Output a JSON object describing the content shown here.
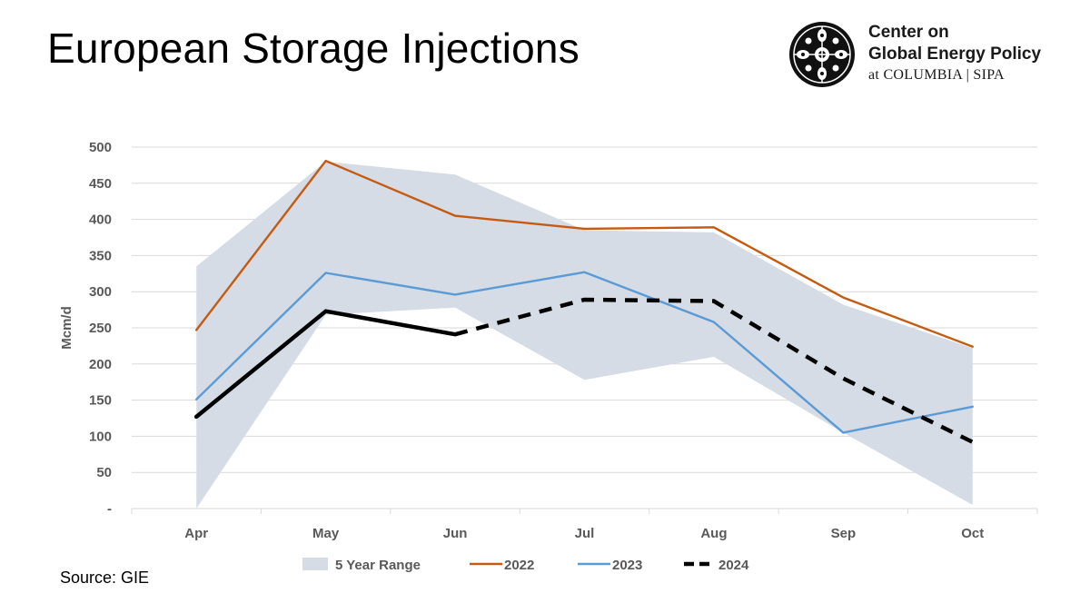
{
  "slide": {
    "title": "European Storage Injections",
    "source": "Source: GIE"
  },
  "logo": {
    "line1": "Center on",
    "line2": "Global Energy Policy",
    "line3": "at COLUMBIA | SIPA",
    "icon": "columbia-crown-seal-icon"
  },
  "chart_data": {
    "type": "line",
    "title": "",
    "xlabel": "",
    "ylabel": "Mcm/d",
    "categories": [
      "Apr",
      "May",
      "Jun",
      "Jul",
      "Aug",
      "Sep",
      "Oct"
    ],
    "ylim": [
      0,
      500
    ],
    "yticks": [
      0,
      50,
      100,
      150,
      200,
      250,
      300,
      350,
      400,
      450,
      500
    ],
    "ytick_labels": [
      "-",
      "50",
      "100",
      "150",
      "200",
      "250",
      "300",
      "350",
      "400",
      "450",
      "500"
    ],
    "grid": true,
    "legend_position": "bottom",
    "range": {
      "name": "5 Year Range",
      "color": "#d6dce5",
      "low": [
        0,
        268,
        278,
        178,
        210,
        105,
        5
      ],
      "high": [
        335,
        480,
        462,
        385,
        382,
        282,
        222
      ]
    },
    "series": [
      {
        "name": "2022",
        "color": "#c55a11",
        "style": "solid",
        "values": [
          247,
          481,
          405,
          387,
          389,
          292,
          224
        ]
      },
      {
        "name": "2023",
        "color": "#5b9bd5",
        "style": "solid",
        "values": [
          151,
          326,
          296,
          327,
          258,
          105,
          141
        ]
      },
      {
        "name": "2024",
        "color": "#000000",
        "style": "solid-then-dashed",
        "dashed_from": "Jun",
        "values": [
          127,
          273,
          241,
          289,
          287,
          180,
          92
        ]
      }
    ]
  }
}
